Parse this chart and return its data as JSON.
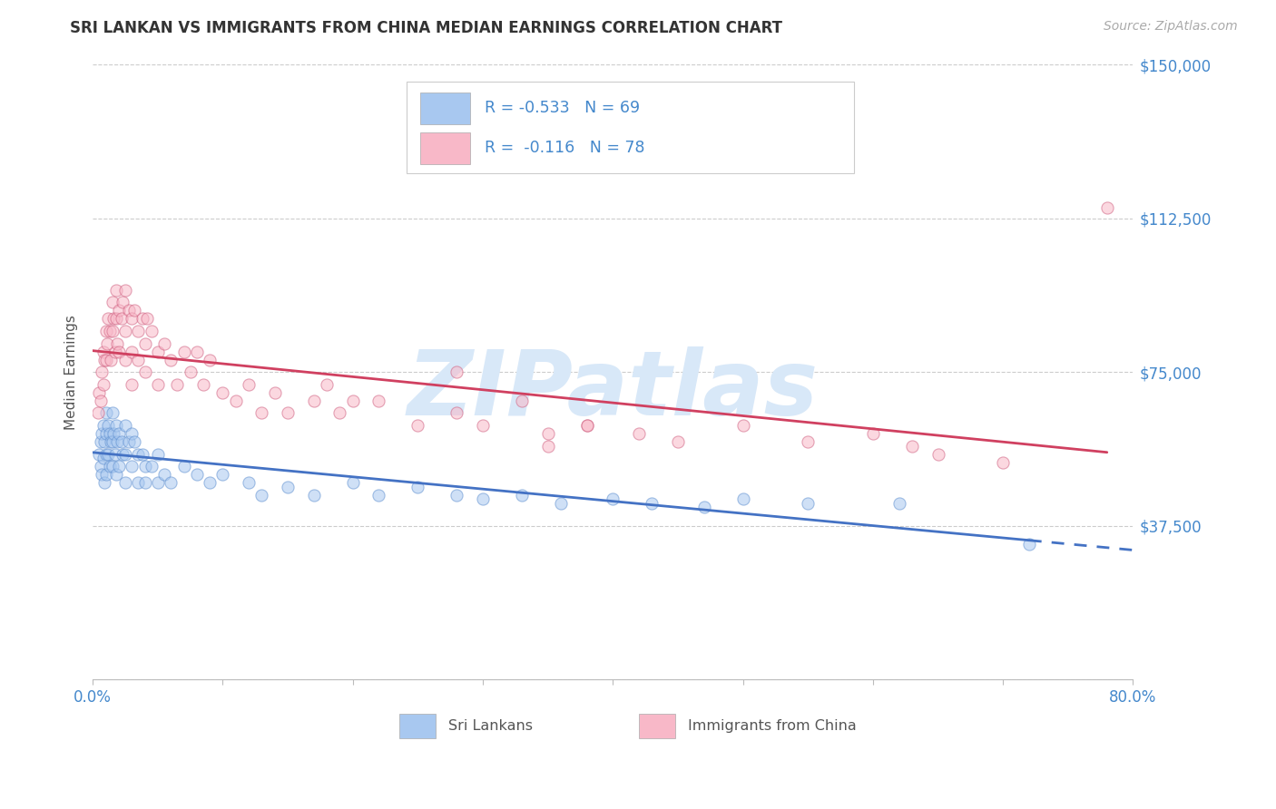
{
  "title": "SRI LANKAN VS IMMIGRANTS FROM CHINA MEDIAN EARNINGS CORRELATION CHART",
  "source": "Source: ZipAtlas.com",
  "ylabel": "Median Earnings",
  "ytick_right_labels": [
    "$37,500",
    "$75,000",
    "$112,500",
    "$150,000"
  ],
  "ytick_right_values": [
    37500,
    75000,
    112500,
    150000
  ],
  "ytick_all_values": [
    0,
    37500,
    75000,
    112500,
    150000
  ],
  "xmin": 0.0,
  "xmax": 0.8,
  "ymin": 0,
  "ymax": 150000,
  "sri_lankan_fill": "#a8c8f0",
  "sri_lankan_edge": "#6090d0",
  "china_fill": "#f8b8c8",
  "china_edge": "#d06080",
  "sri_lankan_label": "Sri Lankans",
  "china_label": "Immigrants from China",
  "legend_r1": "-0.533",
  "legend_n1": "69",
  "legend_r2": "-0.116",
  "legend_n2": "78",
  "trend_sri_color": "#4472c4",
  "trend_china_color": "#d04060",
  "watermark_text": "ZIPatlas",
  "watermark_color": "#d8e8f8",
  "axis_label_color": "#4488cc",
  "legend_text_color": "#4488cc",
  "scatter_size": 90,
  "scatter_alpha": 0.55,
  "sri_lankans_x": [
    0.005,
    0.006,
    0.006,
    0.007,
    0.007,
    0.008,
    0.008,
    0.009,
    0.009,
    0.01,
    0.01,
    0.01,
    0.01,
    0.012,
    0.012,
    0.013,
    0.013,
    0.014,
    0.015,
    0.015,
    0.015,
    0.016,
    0.017,
    0.018,
    0.018,
    0.019,
    0.02,
    0.02,
    0.022,
    0.023,
    0.025,
    0.025,
    0.025,
    0.028,
    0.03,
    0.03,
    0.032,
    0.035,
    0.035,
    0.038,
    0.04,
    0.04,
    0.045,
    0.05,
    0.05,
    0.055,
    0.06,
    0.07,
    0.08,
    0.09,
    0.1,
    0.12,
    0.13,
    0.15,
    0.17,
    0.2,
    0.22,
    0.25,
    0.28,
    0.3,
    0.33,
    0.36,
    0.4,
    0.43,
    0.47,
    0.5,
    0.55,
    0.62,
    0.72
  ],
  "sri_lankans_y": [
    55000,
    58000,
    52000,
    60000,
    50000,
    62000,
    54000,
    58000,
    48000,
    65000,
    60000,
    55000,
    50000,
    62000,
    55000,
    60000,
    52000,
    58000,
    65000,
    58000,
    52000,
    60000,
    55000,
    62000,
    50000,
    58000,
    60000,
    52000,
    58000,
    55000,
    62000,
    55000,
    48000,
    58000,
    60000,
    52000,
    58000,
    55000,
    48000,
    55000,
    52000,
    48000,
    52000,
    55000,
    48000,
    50000,
    48000,
    52000,
    50000,
    48000,
    50000,
    48000,
    45000,
    47000,
    45000,
    48000,
    45000,
    47000,
    45000,
    44000,
    45000,
    43000,
    44000,
    43000,
    42000,
    44000,
    43000,
    43000,
    33000
  ],
  "china_x": [
    0.004,
    0.005,
    0.006,
    0.007,
    0.008,
    0.008,
    0.009,
    0.01,
    0.01,
    0.011,
    0.012,
    0.013,
    0.014,
    0.015,
    0.015,
    0.016,
    0.017,
    0.018,
    0.018,
    0.019,
    0.02,
    0.02,
    0.022,
    0.023,
    0.025,
    0.025,
    0.025,
    0.028,
    0.03,
    0.03,
    0.03,
    0.032,
    0.035,
    0.035,
    0.038,
    0.04,
    0.04,
    0.042,
    0.045,
    0.05,
    0.05,
    0.055,
    0.06,
    0.065,
    0.07,
    0.075,
    0.08,
    0.085,
    0.09,
    0.1,
    0.11,
    0.12,
    0.13,
    0.14,
    0.15,
    0.17,
    0.19,
    0.22,
    0.25,
    0.28,
    0.3,
    0.35,
    0.38,
    0.42,
    0.45,
    0.5,
    0.55,
    0.6,
    0.63,
    0.65,
    0.7,
    0.28,
    0.18,
    0.2,
    0.33,
    0.38,
    0.35,
    0.78
  ],
  "china_y": [
    65000,
    70000,
    68000,
    75000,
    80000,
    72000,
    78000,
    85000,
    78000,
    82000,
    88000,
    85000,
    78000,
    92000,
    85000,
    88000,
    80000,
    95000,
    88000,
    82000,
    90000,
    80000,
    88000,
    92000,
    95000,
    85000,
    78000,
    90000,
    88000,
    80000,
    72000,
    90000,
    85000,
    78000,
    88000,
    82000,
    75000,
    88000,
    85000,
    80000,
    72000,
    82000,
    78000,
    72000,
    80000,
    75000,
    80000,
    72000,
    78000,
    70000,
    68000,
    72000,
    65000,
    70000,
    65000,
    68000,
    65000,
    68000,
    62000,
    65000,
    62000,
    60000,
    62000,
    60000,
    58000,
    62000,
    58000,
    60000,
    57000,
    55000,
    53000,
    75000,
    72000,
    68000,
    68000,
    62000,
    57000,
    115000
  ]
}
